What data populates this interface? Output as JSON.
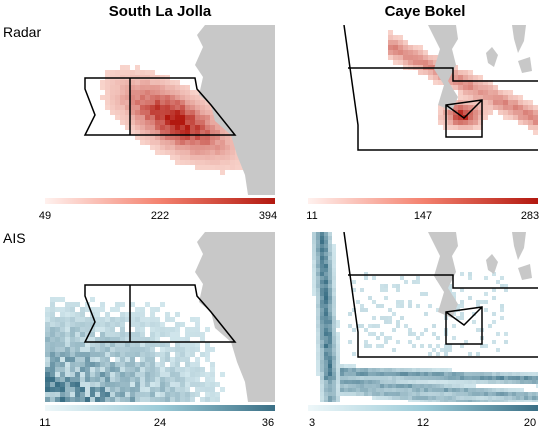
{
  "figure": {
    "column_titles": [
      "South La Jolla",
      "Caye Bokel"
    ],
    "row_labels": [
      "Radar",
      "AIS"
    ]
  },
  "panels": [
    {
      "column": "South La Jolla",
      "row": "Radar",
      "colormap": "red",
      "colorbar_ticks": [
        "49",
        "222",
        "394"
      ],
      "colorbar_range": [
        49,
        394
      ]
    },
    {
      "column": "Caye Bokel",
      "row": "Radar",
      "colormap": "red",
      "colorbar_ticks": [
        "11",
        "147",
        "283"
      ],
      "colorbar_range": [
        11,
        283
      ]
    },
    {
      "column": "South La Jolla",
      "row": "AIS",
      "colormap": "blue",
      "colorbar_ticks": [
        "11",
        "24",
        "36"
      ],
      "colorbar_range": [
        11,
        36
      ]
    },
    {
      "column": "Caye Bokel",
      "row": "AIS",
      "colormap": "blue",
      "colorbar_ticks": [
        "3",
        "12",
        "20"
      ],
      "colorbar_range": [
        3,
        20
      ]
    }
  ],
  "colors": {
    "land": "#c8c8c8",
    "zone_outline": "#000000",
    "radar_high": "#b2180f",
    "radar_low": "#fde0d8",
    "ais_high": "#3a6f85",
    "ais_low": "#dbeef3"
  }
}
